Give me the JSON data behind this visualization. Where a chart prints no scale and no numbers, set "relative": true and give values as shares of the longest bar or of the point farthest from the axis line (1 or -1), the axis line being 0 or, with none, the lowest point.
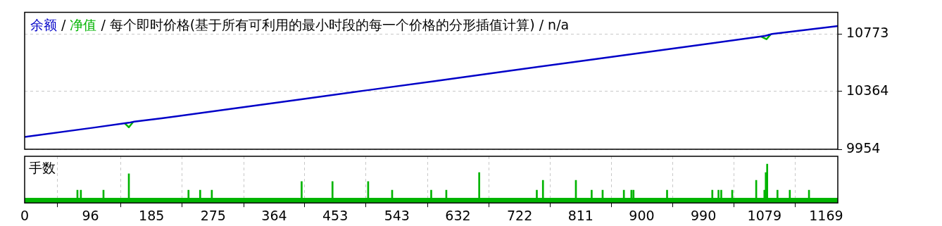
{
  "chart_data": [
    {
      "type": "line",
      "title": "每个即时价格(基于所有可利用的最小时段的每一个价格的分形插值计算) / n/a",
      "annotations": [
        "/",
        "/"
      ],
      "xlim": [
        0,
        1186
      ],
      "ylim": [
        9954,
        10926
      ],
      "yticks": [
        9954,
        10364,
        10773
      ],
      "tick_labels": "y",
      "grid": true,
      "legend": "top left",
      "marker": "none",
      "line_style": "solid",
      "series": [
        {
          "name": "余额",
          "color": "#0000c8",
          "x": [
            0,
            100,
            152,
            160,
            200,
            300,
            400,
            500,
            600,
            700,
            800,
            900,
            1000,
            1080,
            1090,
            1186
          ],
          "values": [
            10041,
            10107,
            10142,
            10150,
            10174,
            10240,
            10306,
            10373,
            10439,
            10506,
            10572,
            10638,
            10705,
            10758,
            10772,
            10828
          ]
        },
        {
          "name": "净值",
          "color": "#00b400",
          "x": [
            146,
            152,
            158,
            160,
            1074,
            1082,
            1088
          ],
          "values": [
            10138,
            10110,
            10146,
            null,
            10754,
            10735,
            10768
          ]
        }
      ]
    },
    {
      "type": "bar",
      "title": "手数",
      "relative": true,
      "xlim": [
        0,
        1186
      ],
      "xticks": [
        0,
        96,
        185,
        275,
        364,
        453,
        543,
        632,
        722,
        811,
        900,
        990,
        1079,
        1169
      ],
      "tick_labels": "x",
      "grid": "x",
      "series": [
        {
          "type": "area",
          "color": "#00b400",
          "x": [
            0,
            1186
          ],
          "values": [
            0.12,
            0.12
          ]
        },
        {
          "color": "#00b400",
          "x": [
            77,
            82,
            115,
            152,
            239,
            256,
            273,
            404,
            449,
            501,
            536,
            593,
            615,
            663,
            747,
            756,
            804,
            827,
            843,
            874,
            885,
            888,
            937,
            1003,
            1012,
            1016,
            1032,
            1067,
            1079,
            1081,
            1083,
            1098,
            1116,
            1144
          ],
          "values": [
            0.33,
            0.33,
            0.33,
            0.75,
            0.33,
            0.33,
            0.33,
            0.55,
            0.55,
            0.55,
            0.33,
            0.33,
            0.33,
            0.78,
            0.33,
            0.58,
            0.58,
            0.33,
            0.33,
            0.33,
            0.33,
            0.33,
            0.33,
            0.33,
            0.33,
            0.33,
            0.33,
            0.58,
            0.33,
            0.78,
            1,
            0.33,
            0.33,
            0.33
          ]
        }
      ]
    }
  ]
}
